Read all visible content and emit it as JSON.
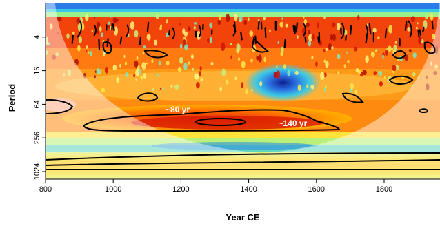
{
  "chart_data": {
    "type": "heatmap",
    "subtype": "wavelet power spectrum",
    "xlabel": "Year CE",
    "ylabel": "Period",
    "xlim": [
      800,
      1965
    ],
    "ylim": [
      1,
      1400
    ],
    "y_scale": "log2",
    "y_reversed": true,
    "x_ticks": [
      800,
      1000,
      1200,
      1400,
      1600,
      1800
    ],
    "y_ticks": [
      4,
      16,
      64,
      256,
      1024
    ],
    "y_tick_labels": [
      "4",
      "16",
      "64",
      "256",
      "1024"
    ],
    "colormap": [
      "#1a2f9e",
      "#2f6fe0",
      "#33c8e8",
      "#7ff0a0",
      "#e8f03a",
      "#ffb300",
      "#ff5a00",
      "#d61a00"
    ],
    "cone_of_influence": true,
    "annotations": [
      {
        "text": "~80 yr",
        "x": 1190,
        "period": 80
      },
      {
        "text": "~140 yr",
        "x": 1530,
        "period": 140
      }
    ],
    "features": [
      {
        "name": "low-power minimum",
        "x": 1490,
        "period": 16
      }
    ]
  }
}
